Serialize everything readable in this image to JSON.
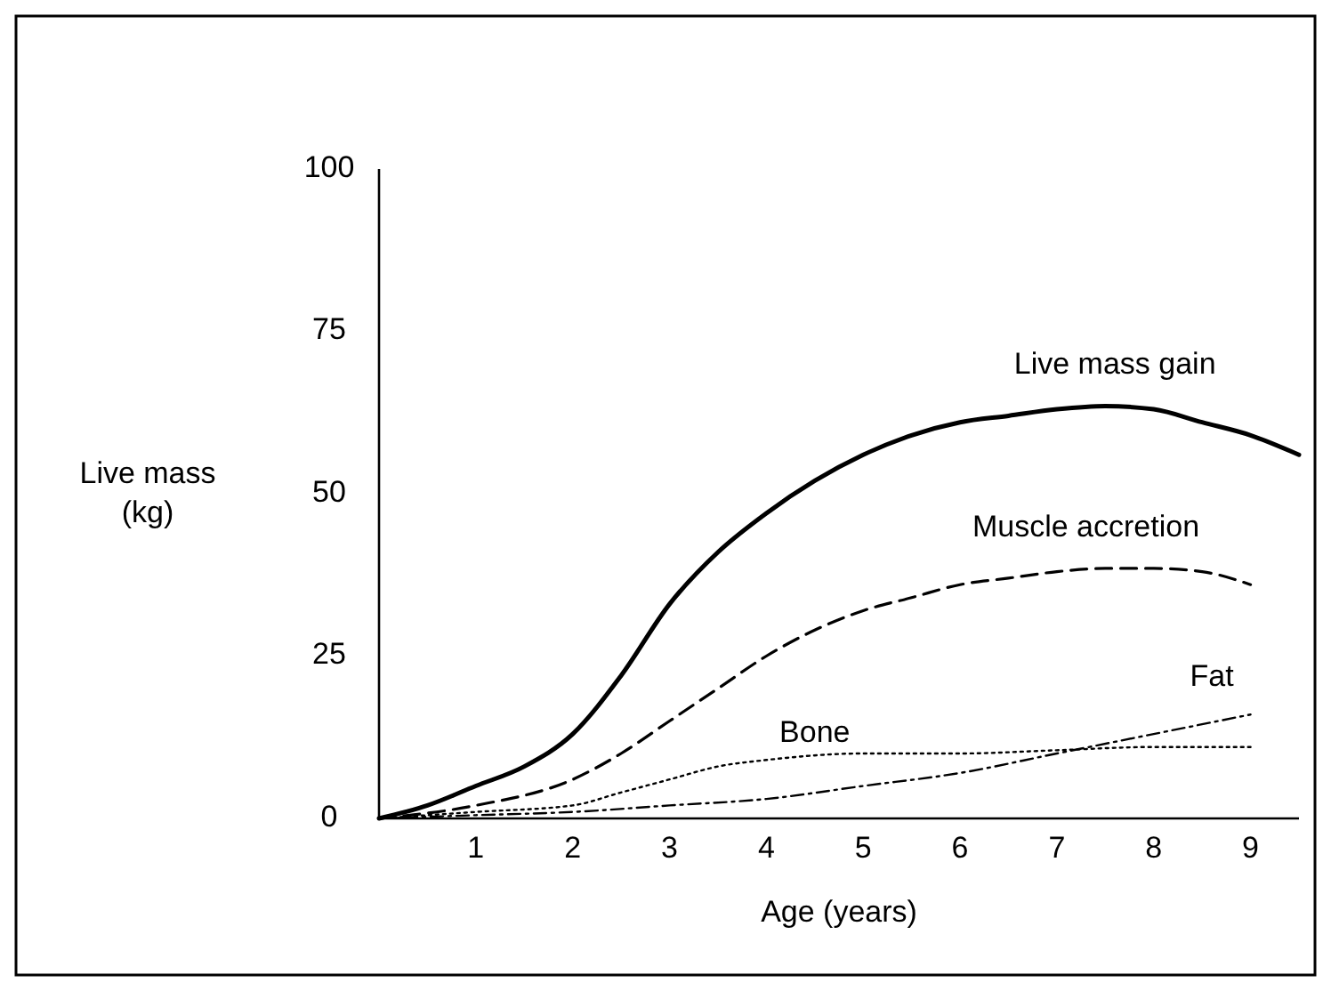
{
  "chart_data": {
    "type": "line",
    "xlabel": "Age (years)",
    "ylabel": "Live mass\n(kg)",
    "xlim": [
      0,
      9.5
    ],
    "ylim": [
      0,
      100
    ],
    "xticks": [
      1,
      2,
      3,
      4,
      5,
      6,
      7,
      8,
      9
    ],
    "yticks": [
      0,
      25,
      50,
      75,
      100
    ],
    "grid": false,
    "series": [
      {
        "name": "Live mass gain",
        "color": "#000000",
        "line_style": "solid",
        "x": [
          0,
          0.5,
          1,
          1.5,
          2,
          2.5,
          3,
          3.5,
          4,
          4.5,
          5,
          5.5,
          6,
          6.5,
          7,
          7.5,
          8,
          8.5,
          9,
          9.5
        ],
        "values": [
          0,
          2,
          5,
          8,
          13,
          22,
          33,
          41,
          47,
          52,
          56,
          59,
          61,
          62,
          63,
          63.5,
          63,
          61,
          59,
          56
        ]
      },
      {
        "name": "Muscle accretion",
        "color": "#000000",
        "line_style": "dashed",
        "x": [
          0,
          1,
          2,
          2.5,
          3,
          3.5,
          4,
          4.5,
          5,
          5.5,
          6,
          6.5,
          7,
          7.5,
          8,
          8.5,
          9
        ],
        "values": [
          0,
          2,
          6,
          10,
          15,
          20,
          25,
          29,
          32,
          34,
          36,
          37,
          38,
          38.5,
          38.5,
          38,
          36
        ]
      },
      {
        "name": "Bone",
        "color": "#000000",
        "line_style": "dotted",
        "x": [
          0,
          1,
          2,
          2.5,
          3,
          3.5,
          4,
          5,
          6,
          7,
          8,
          9
        ],
        "values": [
          0,
          1,
          2,
          4,
          6,
          8,
          9,
          10,
          10,
          10.5,
          11,
          11
        ]
      },
      {
        "name": "Fat",
        "color": "#000000",
        "line_style": "dashdot",
        "x": [
          0,
          1,
          2,
          3,
          4,
          5,
          6,
          7,
          8,
          9
        ],
        "values": [
          0,
          0.5,
          1,
          2,
          3,
          5,
          7,
          10,
          13,
          16
        ]
      }
    ]
  }
}
